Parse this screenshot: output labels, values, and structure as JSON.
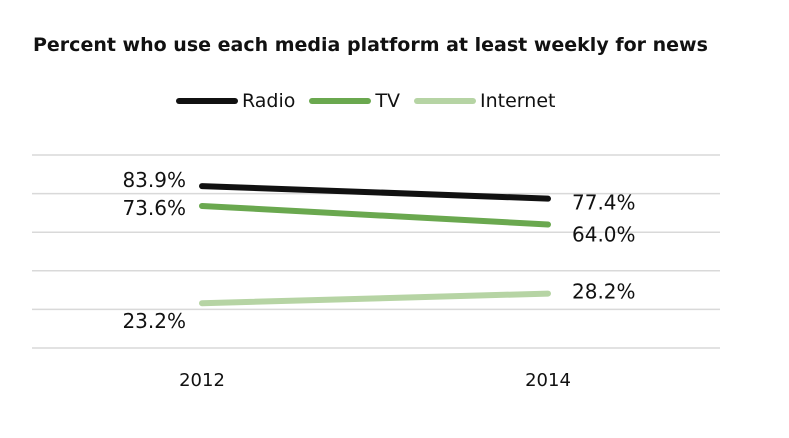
{
  "chart_data": {
    "type": "line",
    "title": "Percent who use each media platform at least weekly for news",
    "x": [
      "2012",
      "2014"
    ],
    "ylim": [
      0,
      100
    ],
    "grid": true,
    "legend_placement": "top",
    "series": [
      {
        "name": "Radio",
        "values": [
          83.9,
          77.4
        ],
        "labels": [
          "83.9%",
          "77.4%"
        ],
        "color": "#111111"
      },
      {
        "name": "TV",
        "values": [
          73.6,
          64.0
        ],
        "labels": [
          "73.6%",
          "64.0%"
        ],
        "color": "#6aa84f"
      },
      {
        "name": "Internet",
        "values": [
          23.2,
          28.2
        ],
        "labels": [
          "23.2%",
          "28.2%"
        ],
        "color": "#b6d4a4"
      }
    ]
  }
}
